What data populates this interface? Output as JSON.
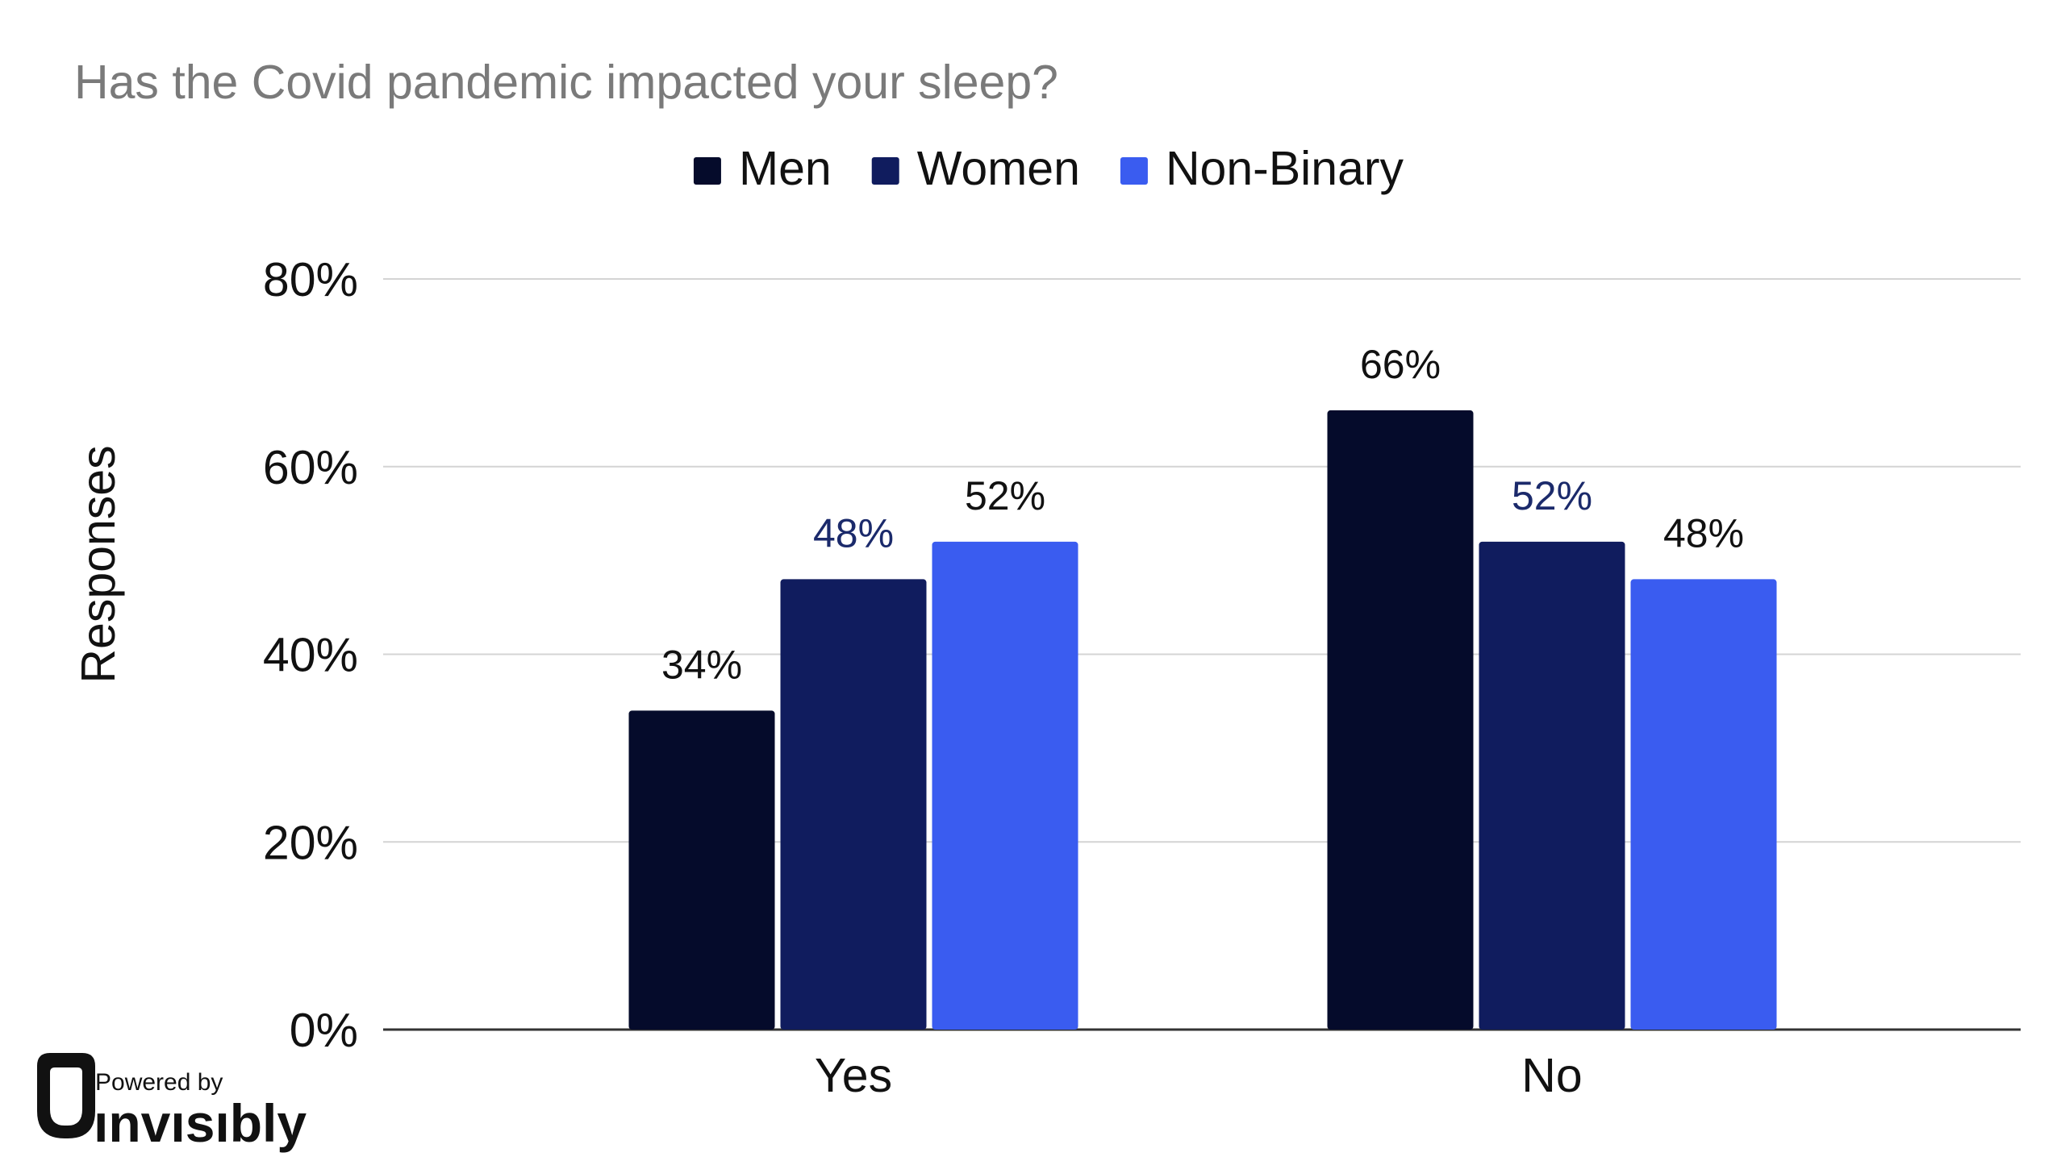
{
  "chart_data": {
    "type": "bar",
    "title": "Has the Covid pandemic impacted your sleep?",
    "xlabel": "",
    "ylabel": "Responses",
    "categories": [
      "Yes",
      "No"
    ],
    "series": [
      {
        "name": "Men",
        "values": [
          34,
          66
        ],
        "labels": [
          "34%",
          "66%"
        ],
        "color": "#050b2b",
        "label_color": "#111111"
      },
      {
        "name": "Women",
        "values": [
          48,
          52
        ],
        "labels": [
          "48%",
          "52%"
        ],
        "color": "#101c5e",
        "label_color": "#1b2a6b"
      },
      {
        "name": "Non-Binary",
        "values": [
          52,
          48
        ],
        "labels": [
          "52%",
          "48%"
        ],
        "color": "#3a5cf0",
        "label_color": "#111111"
      }
    ],
    "ylim": [
      0,
      80
    ],
    "yticks": [
      0,
      20,
      40,
      60,
      80
    ],
    "ytick_labels": [
      "0%",
      "20%",
      "40%",
      "60%",
      "80%"
    ],
    "grid": true,
    "legend_position": "top-center"
  },
  "branding": {
    "powered_by": "Powered by",
    "name": "ınvısıbly",
    "logo_icon": "invisibly-logo-icon"
  }
}
